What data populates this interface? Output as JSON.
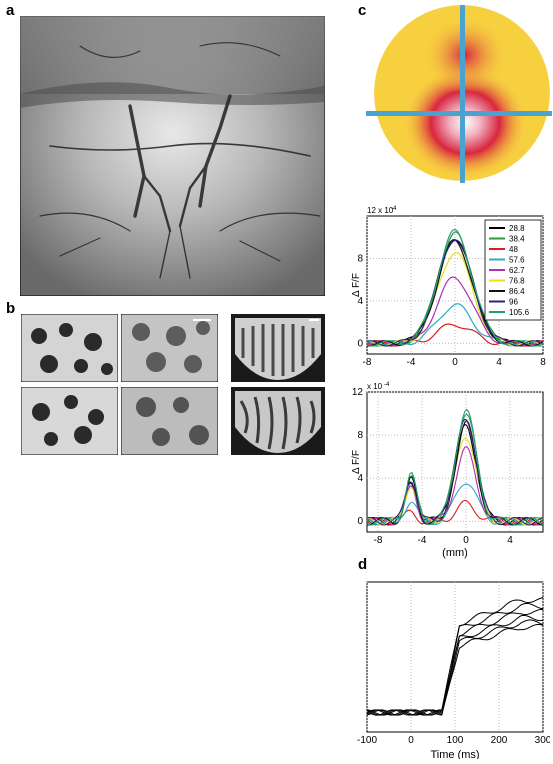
{
  "panels": {
    "a": {
      "letter": "a"
    },
    "b": {
      "letter": "b"
    },
    "c": {
      "letter": "c"
    },
    "d": {
      "letter": "d"
    }
  },
  "colors": {
    "cross": "#4aa3cf",
    "map_yellow": "#f7d040",
    "map_red": "#d8263f",
    "map_white": "#ffffff"
  },
  "chart_data": [
    {
      "id": "c-top",
      "type": "line",
      "ylabel": "Δ F/F",
      "y_multiplier": "12 x 10",
      "y_multiplier_exp": "-4",
      "xlim": [
        -8,
        8
      ],
      "ylim": [
        -1,
        12
      ],
      "xticks": [
        "-8",
        "-4",
        "0",
        "4",
        "8"
      ],
      "yticks": [
        "0",
        "4",
        "8"
      ],
      "xtick_values": [
        -8,
        -4,
        0,
        4,
        8
      ],
      "ytick_values": [
        0,
        4,
        8
      ],
      "grid": true,
      "legend_position": "top-right",
      "legend": [
        "28.8",
        "38.4",
        "48",
        "57.6",
        "62.7",
        "76.8",
        "86.4",
        "96",
        "105.6"
      ],
      "series_colors": [
        "#000000",
        "#2a9a3a",
        "#d62020",
        "#30a8c8",
        "#b030b0",
        "#e8e020",
        "#101010",
        "#302080",
        "#20a070"
      ],
      "peak_values": [
        10.0,
        10.3,
        1.8,
        3.6,
        6.2,
        8.6,
        9.6,
        9.9,
        10.5
      ],
      "peak_x": 0,
      "peak_width": 2.2
    },
    {
      "id": "c-bottom",
      "type": "line",
      "ylabel": "Δ F/F",
      "y_multiplier": "x 10",
      "y_multiplier_exp": "-4",
      "xlabel": "(mm)",
      "xlim": [
        -9,
        7
      ],
      "ylim": [
        -1,
        12
      ],
      "xticks": [
        "-8",
        "-4",
        "0",
        "4"
      ],
      "yticks": [
        "0",
        "4",
        "8",
        "12"
      ],
      "xtick_values": [
        -8,
        -4,
        0,
        4
      ],
      "ytick_values": [
        0,
        4,
        8,
        12
      ],
      "grid": true,
      "series_colors": [
        "#000000",
        "#2a9a3a",
        "#d62020",
        "#30a8c8",
        "#b030b0",
        "#e8e020",
        "#101010",
        "#302080",
        "#20a070"
      ],
      "peak_values": [
        8.8,
        10.2,
        1.6,
        3.8,
        6.6,
        8.0,
        9.1,
        9.6,
        10.3
      ],
      "secondary_peak_values": [
        3.6,
        4.3,
        0.8,
        2.0,
        3.0,
        3.5,
        3.8,
        4.0,
        4.3
      ],
      "peak_x": 0,
      "secondary_peak_x": -5
    },
    {
      "id": "d",
      "type": "line",
      "xlabel": "Time (ms)",
      "xlim": [
        -100,
        300
      ],
      "ylim": [
        0,
        10
      ],
      "xticks": [
        "-100",
        "0",
        "100",
        "200",
        "300"
      ],
      "xtick_values": [
        -100,
        0,
        100,
        200,
        300
      ],
      "grid": true,
      "plateau_values": [
        7.0,
        7.6,
        8.0,
        8.4,
        8.8,
        7.3
      ],
      "baseline": 1.3,
      "onset_ms": 70,
      "rise_end_ms": 110
    }
  ]
}
